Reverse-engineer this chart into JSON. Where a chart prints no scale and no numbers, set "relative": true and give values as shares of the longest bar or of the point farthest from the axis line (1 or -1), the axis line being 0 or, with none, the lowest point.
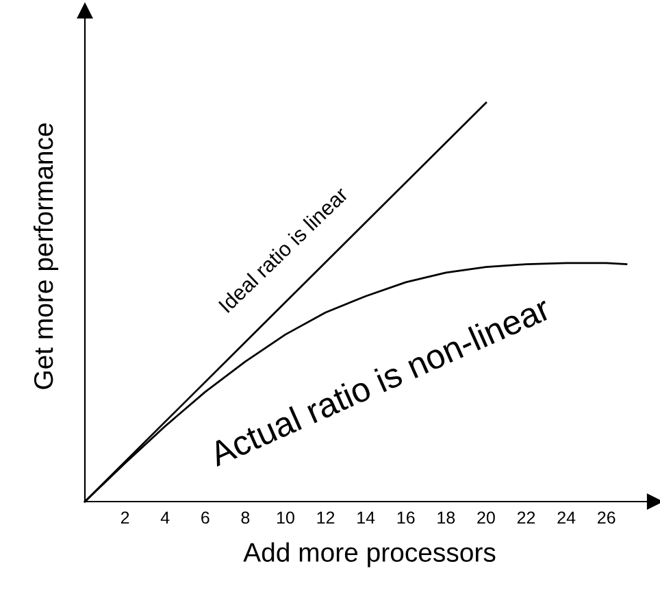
{
  "chart_data": {
    "type": "line",
    "relative": true,
    "xlabel": "Add more processors",
    "ylabel": "Get more performance",
    "xlim": [
      0,
      28.4
    ],
    "xticks": [
      2,
      4,
      6,
      8,
      10,
      12,
      14,
      16,
      18,
      20,
      22,
      24,
      26
    ],
    "grid": false,
    "legend": false,
    "marker": "none",
    "line_style": "solid",
    "annotations": [
      "Ideal ratio is linear",
      "Actual ratio is non-linear"
    ],
    "series": [
      {
        "color": "#000000",
        "x": [
          0,
          20
        ],
        "values": [
          0,
          1
        ]
      },
      {
        "color": "#000000",
        "x": [
          0,
          2,
          4,
          6,
          8,
          10,
          12,
          14,
          16,
          18,
          20,
          22,
          24,
          26,
          27
        ],
        "values": [
          0,
          0.096,
          0.189,
          0.275,
          0.351,
          0.419,
          0.474,
          0.515,
          0.55,
          0.574,
          0.588,
          0.595,
          0.598,
          0.598,
          0.595
        ]
      }
    ]
  }
}
